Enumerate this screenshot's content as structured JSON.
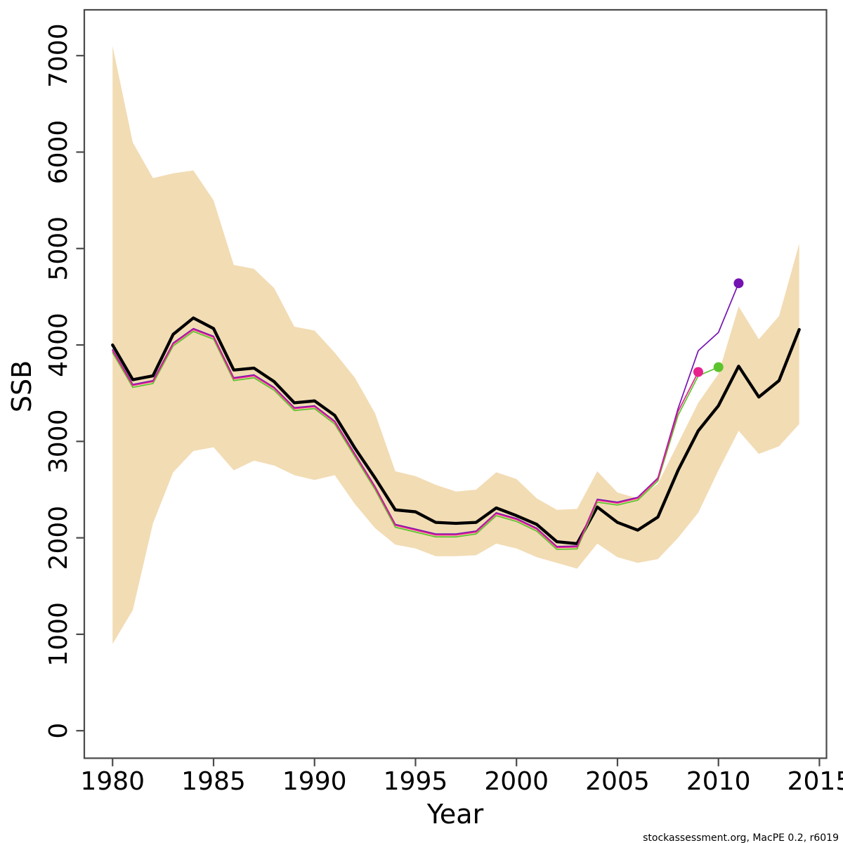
{
  "figure": {
    "footer_credit": "stockassessment.org, MacPE  0.2, r6019",
    "colors": {
      "background": "#ffffff",
      "band": "#F2DCB4",
      "estimate": "#000000",
      "retro_2009": "#E7218E",
      "retro_2010": "#5BC42C",
      "retro_2011": "#7512B2",
      "axis": "#4a4a4a",
      "text": "#000000"
    }
  },
  "chart_data": {
    "type": "line",
    "title": "",
    "xlabel": "Year",
    "ylabel": "SSB",
    "grid": false,
    "legend": "none",
    "xlim": [
      1978.6,
      2015.35
    ],
    "ylim": [
      -285,
      7475
    ],
    "x_ticks": [
      1980,
      1985,
      1990,
      1995,
      2000,
      2005,
      2010,
      2015
    ],
    "y_ticks": [
      0,
      1000,
      2000,
      3000,
      4000,
      5000,
      6000,
      7000
    ],
    "years": [
      1980,
      1981,
      1982,
      1983,
      1984,
      1985,
      1986,
      1987,
      1988,
      1989,
      1990,
      1991,
      1992,
      1993,
      1994,
      1995,
      1996,
      1997,
      1998,
      1999,
      2000,
      2001,
      2002,
      2003,
      2004,
      2005,
      2006,
      2007,
      2008,
      2009,
      2010,
      2011,
      2012,
      2013,
      2014
    ],
    "band": {
      "name": "confidence-interval",
      "upper": [
        7100,
        6100,
        5730,
        5780,
        5810,
        5500,
        4830,
        4790,
        4590,
        4190,
        4150,
        3920,
        3660,
        3290,
        2690,
        2640,
        2550,
        2480,
        2500,
        2680,
        2610,
        2410,
        2290,
        2300,
        2690,
        2470,
        2410,
        2560,
        2980,
        3400,
        3700,
        4400,
        4060,
        4300,
        5050
      ],
      "lower": [
        900,
        1250,
        2150,
        2680,
        2900,
        2940,
        2700,
        2800,
        2750,
        2650,
        2600,
        2650,
        2350,
        2100,
        1930,
        1890,
        1810,
        1810,
        1820,
        1940,
        1890,
        1800,
        1740,
        1680,
        1940,
        1800,
        1740,
        1780,
        2000,
        2260,
        2700,
        3110,
        2870,
        2950,
        3180
      ]
    },
    "series": [
      {
        "name": "ssb-estimate",
        "color_key": "estimate",
        "width": 4.3,
        "end_marker": false,
        "values": [
          4000,
          3640,
          3680,
          4110,
          4280,
          4170,
          3740,
          3760,
          3620,
          3400,
          3420,
          3270,
          2930,
          2620,
          2290,
          2270,
          2160,
          2150,
          2160,
          2310,
          2230,
          2140,
          1960,
          1940,
          2320,
          2160,
          2080,
          2215,
          2700,
          3110,
          3370,
          3780,
          3460,
          3630,
          4160
        ]
      },
      {
        "name": "retro-peel-2010",
        "color_key": "retro_2010",
        "width": 1.7,
        "end_marker": true,
        "values": [
          3920,
          3560,
          3600,
          3990,
          4140,
          4060,
          3630,
          3660,
          3530,
          3320,
          3340,
          3180,
          2840,
          2500,
          2110,
          2060,
          2010,
          2010,
          2040,
          2230,
          2170,
          2070,
          1880,
          1885,
          2370,
          2340,
          2390,
          2590,
          3270,
          3680,
          3770
        ]
      },
      {
        "name": "retro-peel-2011",
        "color_key": "retro_2011",
        "width": 1.7,
        "end_marker": true,
        "values": [
          3950,
          3590,
          3630,
          4020,
          4170,
          4090,
          3660,
          3690,
          3560,
          3350,
          3370,
          3210,
          2870,
          2530,
          2140,
          2090,
          2040,
          2040,
          2070,
          2260,
          2200,
          2100,
          1910,
          1915,
          2400,
          2370,
          2420,
          2620,
          3340,
          3940,
          4130,
          4640
        ]
      },
      {
        "name": "retro-peel-2009",
        "color_key": "retro_2009",
        "width": 1.7,
        "end_marker": true,
        "values": [
          3940,
          3580,
          3620,
          4010,
          4160,
          4080,
          3650,
          3680,
          3550,
          3340,
          3360,
          3200,
          2860,
          2520,
          2130,
          2080,
          2030,
          2030,
          2060,
          2250,
          2190,
          2090,
          1900,
          1905,
          2390,
          2360,
          2410,
          2610,
          3310,
          3720
        ]
      }
    ]
  }
}
